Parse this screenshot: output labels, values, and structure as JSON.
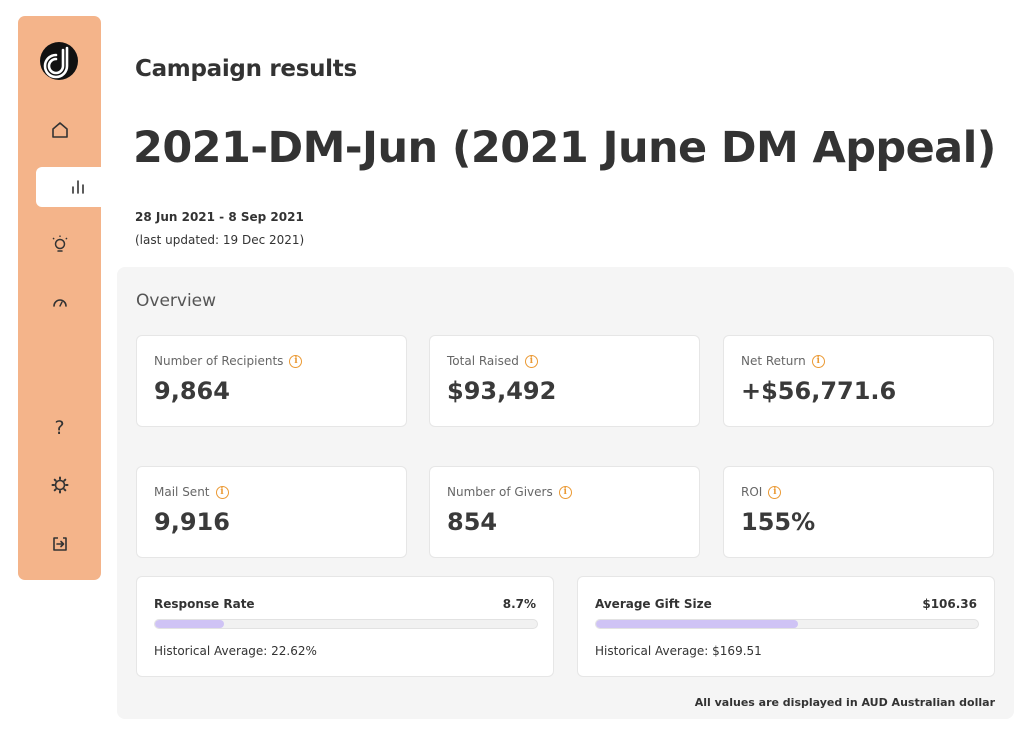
{
  "sidebar": {
    "logo_icon": "d-logo-icon",
    "items": [
      {
        "name": "home",
        "icon": "home-icon"
      },
      {
        "name": "results",
        "icon": "bar-chart-icon",
        "active": true
      },
      {
        "name": "insights",
        "icon": "lightbulb-icon"
      },
      {
        "name": "dashboard",
        "icon": "gauge-icon"
      },
      {
        "name": "help",
        "icon": "question-icon",
        "label": "?"
      },
      {
        "name": "settings",
        "icon": "gear-icon"
      },
      {
        "name": "logout",
        "icon": "logout-icon"
      }
    ],
    "bg_color": "#f4b48a"
  },
  "header": {
    "label": "Campaign results",
    "title": "2021-DM-Jun (2021 June DM Appeal)",
    "date_range": "28 Jun 2021 - 8 Sep 2021",
    "last_updated": "(last updated: 19 Dec 2021)"
  },
  "overview": {
    "title": "Overview",
    "cards": [
      {
        "label": "Number of Recipients",
        "value": "9,864"
      },
      {
        "label": "Total Raised",
        "value": "$93,492"
      },
      {
        "label": "Net Return",
        "value": "+$56,771.6"
      },
      {
        "label": "Mail Sent",
        "value": "9,916"
      },
      {
        "label": "Number of Givers",
        "value": "854"
      },
      {
        "label": "ROI",
        "value": "155%"
      }
    ],
    "response_rate": {
      "label": "Response Rate",
      "value": "8.7%",
      "fill_fraction": 0.18,
      "historical": "Historical Average: 22.62%"
    },
    "avg_gift": {
      "label": "Average Gift Size",
      "value": "$106.36",
      "fill_fraction": 0.53,
      "historical": "Historical Average: $169.51"
    },
    "footnote": "All values are displayed in AUD Australian dollar"
  },
  "colors": {
    "accent": "#f4b48a",
    "info_icon": "#eb9a35",
    "bar_fill": "#cfc3f5"
  }
}
